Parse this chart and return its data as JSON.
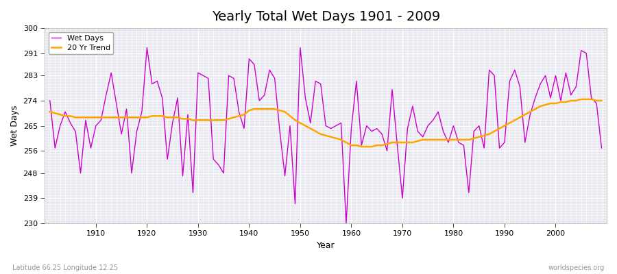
{
  "title": "Yearly Total Wet Days 1901 - 2009",
  "xlabel": "Year",
  "ylabel": "Wet Days",
  "lat_lon_label": "Latitude 66.25 Longitude 12.25",
  "watermark": "worldspecies.org",
  "ylim": [
    230,
    300
  ],
  "yticks": [
    230,
    239,
    248,
    256,
    265,
    274,
    283,
    291,
    300
  ],
  "xticks": [
    1910,
    1920,
    1930,
    1940,
    1950,
    1960,
    1970,
    1980,
    1990,
    2000
  ],
  "wet_days_color": "#cc00cc",
  "trend_color": "#ffa500",
  "bg_color": "#ffffff",
  "plot_bg_color": "#e8e8f0",
  "grid_color": "#ffffff",
  "years": [
    1901,
    1902,
    1903,
    1904,
    1905,
    1906,
    1907,
    1908,
    1909,
    1910,
    1911,
    1912,
    1913,
    1914,
    1915,
    1916,
    1917,
    1918,
    1919,
    1920,
    1921,
    1922,
    1923,
    1924,
    1925,
    1926,
    1927,
    1928,
    1929,
    1930,
    1931,
    1932,
    1933,
    1934,
    1935,
    1936,
    1937,
    1938,
    1939,
    1940,
    1941,
    1942,
    1943,
    1944,
    1945,
    1946,
    1947,
    1948,
    1949,
    1950,
    1951,
    1952,
    1953,
    1954,
    1955,
    1956,
    1957,
    1958,
    1959,
    1960,
    1961,
    1962,
    1963,
    1964,
    1965,
    1966,
    1967,
    1968,
    1969,
    1970,
    1971,
    1972,
    1973,
    1974,
    1975,
    1976,
    1977,
    1978,
    1979,
    1980,
    1981,
    1982,
    1983,
    1984,
    1985,
    1986,
    1987,
    1988,
    1989,
    1990,
    1991,
    1992,
    1993,
    1994,
    1995,
    1996,
    1997,
    1998,
    1999,
    2000,
    2001,
    2002,
    2003,
    2004,
    2005,
    2006,
    2007,
    2008,
    2009
  ],
  "wet_days": [
    274,
    257,
    265,
    270,
    266,
    263,
    248,
    267,
    257,
    265,
    267,
    276,
    284,
    273,
    262,
    271,
    248,
    263,
    270,
    293,
    280,
    281,
    275,
    253,
    266,
    275,
    247,
    269,
    241,
    284,
    283,
    282,
    253,
    251,
    248,
    283,
    282,
    270,
    264,
    289,
    287,
    274,
    276,
    285,
    282,
    263,
    247,
    265,
    237,
    293,
    275,
    266,
    281,
    280,
    265,
    264,
    265,
    266,
    230,
    264,
    281,
    258,
    265,
    263,
    264,
    262,
    256,
    278,
    258,
    239,
    264,
    272,
    263,
    261,
    265,
    267,
    270,
    263,
    259,
    265,
    259,
    258,
    241,
    263,
    265,
    257,
    285,
    283,
    257,
    259,
    281,
    285,
    279,
    259,
    269,
    275,
    280,
    283,
    275,
    283,
    274,
    284,
    276,
    279,
    292,
    291,
    275,
    273,
    257
  ],
  "trend": [
    270,
    269.5,
    269,
    268.5,
    268.5,
    268,
    268,
    268,
    268,
    268,
    268,
    268,
    268,
    268,
    268,
    268,
    268,
    268,
    268,
    268,
    268.5,
    268.5,
    268.5,
    268,
    268,
    268,
    267.5,
    267.5,
    267,
    267,
    267,
    267,
    267,
    267,
    267,
    267.5,
    268,
    268.5,
    269,
    270.5,
    271,
    271,
    271,
    271,
    271,
    270.5,
    270,
    268.5,
    267,
    266,
    265,
    264,
    263,
    262,
    261.5,
    261,
    260.5,
    260,
    259,
    258,
    258,
    257.5,
    257.5,
    257.5,
    258,
    258,
    258.5,
    259,
    259,
    259,
    259,
    259,
    259.5,
    260,
    260,
    260,
    260,
    260,
    260,
    260,
    260,
    260,
    260,
    260.5,
    261,
    261.5,
    262,
    263,
    264,
    265,
    266,
    267,
    268,
    269,
    270,
    271,
    272,
    272.5,
    273,
    273,
    273.5,
    273.5,
    274,
    274,
    274.5,
    274.5,
    274.5,
    274,
    274
  ]
}
